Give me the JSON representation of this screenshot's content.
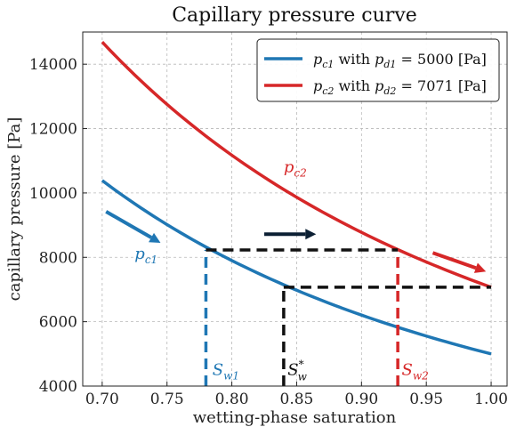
{
  "chart_data": {
    "type": "line",
    "title": "Capillary pressure curve",
    "xlabel": "wetting-phase saturation",
    "ylabel": "capillary pressure [Pa]",
    "xlim": [
      0.685,
      1.013
    ],
    "ylim": [
      4000,
      15000
    ],
    "xticks": [
      0.7,
      0.75,
      0.8,
      0.85,
      0.9,
      0.95,
      1.0
    ],
    "xtick_labels": [
      "0.70",
      "0.75",
      "0.80",
      "0.85",
      "0.90",
      "0.95",
      "1.00"
    ],
    "yticks": [
      4000,
      6000,
      8000,
      10000,
      12000,
      14000
    ],
    "ytick_labels": [
      "4000",
      "6000",
      "8000",
      "10000",
      "12000",
      "14000"
    ],
    "grid": true,
    "legend_position": "top-right",
    "series": [
      {
        "name": "p_c1 with p_d1 = 5000 [Pa]",
        "color": "#1f77b4",
        "entry_pressure": 5000,
        "x": [
          0.7,
          0.72,
          0.74,
          0.76,
          0.78,
          0.8,
          0.82,
          0.84,
          0.86,
          0.88,
          0.9,
          0.92,
          0.94,
          0.96,
          0.98,
          1.0
        ],
        "y": [
          10200,
          9560,
          8970,
          8430,
          7940,
          7490,
          7070,
          6690,
          6340,
          6010,
          5710,
          5430,
          5170,
          4930,
          4710,
          5000
        ]
      },
      {
        "name": "p_c2 with p_d2 = 7071 [Pa]",
        "color": "#d62728",
        "entry_pressure": 7071,
        "x": [
          0.7,
          0.72,
          0.74,
          0.76,
          0.78,
          0.8,
          0.82,
          0.84,
          0.86,
          0.88,
          0.9,
          0.92,
          0.94,
          0.96,
          0.98,
          1.0
        ],
        "y": [
          14430,
          13520,
          12690,
          11920,
          11220,
          10590,
          10000,
          9460,
          8960,
          8500,
          8070,
          7680,
          7620,
          7350,
          7200,
          7071
        ]
      }
    ],
    "annotations": {
      "pc1_label": {
        "main": "p",
        "sub": "c1",
        "x": 0.725,
        "y": 7950,
        "color": "#1f77b4"
      },
      "pc2_label": {
        "main": "p",
        "sub": "c2",
        "x": 0.84,
        "y": 10650,
        "color": "#d62728"
      },
      "sw1_label": {
        "main": "S",
        "sub": "w1",
        "sup": "",
        "x": 0.785,
        "y": 4350,
        "color": "#1f77b4"
      },
      "sw_label": {
        "main": "S",
        "sub": "w",
        "sup": "*",
        "x": 0.843,
        "y": 4350,
        "color": "#111111"
      },
      "sw2_label": {
        "main": "S",
        "sub": "w2",
        "sup": "",
        "x": 0.931,
        "y": 4350,
        "color": "#d62728"
      },
      "sw1": 0.78,
      "sw": 0.84,
      "sw2": 0.928,
      "p_high": 8230,
      "p_low": 7071,
      "arrows": [
        {
          "x1": 0.703,
          "y1": 9420,
          "x2": 0.745,
          "y2": 8450,
          "color": "#1f77b4"
        },
        {
          "x1": 0.825,
          "y1": 8720,
          "x2": 0.865,
          "y2": 8720,
          "color": "#0b1f33"
        },
        {
          "x1": 0.955,
          "y1": 8140,
          "x2": 0.996,
          "y2": 7560,
          "color": "#d62728"
        }
      ]
    }
  }
}
